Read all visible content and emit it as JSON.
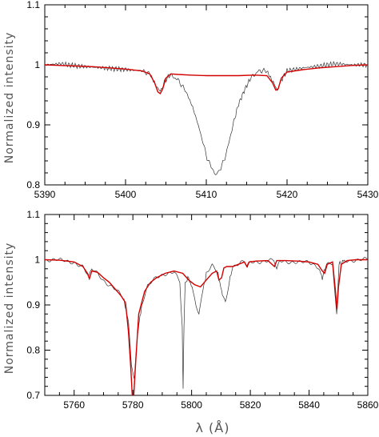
{
  "chart_data": [
    {
      "type": "line",
      "ylabel": "Normalized intensity",
      "xlabel": "",
      "xlim": [
        5390,
        5430
      ],
      "ylim": [
        0.8,
        1.1
      ],
      "x_ticks": [
        5390,
        5400,
        5410,
        5420,
        5430
      ],
      "y_ticks": [
        0.8,
        0.9,
        1,
        1.1
      ],
      "y_tick_labels": [
        "0.8",
        "0.9",
        "1",
        "1.1"
      ],
      "series": [
        {
          "role": "observed",
          "color": "#333333",
          "x": [
            5390,
            5392,
            5394,
            5396,
            5398,
            5400,
            5402,
            5403,
            5403.8,
            5404.3,
            5404.8,
            5405.5,
            5406.5,
            5407.5,
            5408.3,
            5409.0,
            5409.6,
            5410.1,
            5410.6,
            5411.0,
            5411.4,
            5411.8,
            5412.3,
            5412.8,
            5413.3,
            5414.0,
            5414.8,
            5415.5,
            5416.5,
            5417.5,
            5418.3,
            5418.8,
            5419.3,
            5420,
            5422,
            5424,
            5426,
            5428,
            5430
          ],
          "y": [
            1.0,
            1.002,
            0.998,
            0.996,
            0.994,
            0.992,
            0.99,
            0.985,
            0.965,
            0.955,
            0.972,
            0.983,
            0.975,
            0.955,
            0.93,
            0.9,
            0.87,
            0.845,
            0.83,
            0.82,
            0.822,
            0.828,
            0.845,
            0.87,
            0.9,
            0.935,
            0.96,
            0.978,
            0.99,
            0.99,
            0.97,
            0.958,
            0.975,
            0.99,
            0.995,
            0.998,
            1.002,
            1.0,
            1.0
          ]
        },
        {
          "role": "model",
          "color": "#d40000",
          "x": [
            5390,
            5392,
            5394,
            5396,
            5398,
            5400,
            5402,
            5403,
            5403.6,
            5404.0,
            5404.3,
            5404.6,
            5405.0,
            5405.6,
            5406.5,
            5408,
            5410,
            5412,
            5414,
            5416,
            5417.5,
            5418.2,
            5418.6,
            5418.9,
            5419.3,
            5420,
            5422,
            5424,
            5426,
            5428,
            5430
          ],
          "y": [
            1.0,
            0.999,
            0.998,
            0.997,
            0.995,
            0.993,
            0.99,
            0.985,
            0.97,
            0.955,
            0.952,
            0.96,
            0.978,
            0.985,
            0.984,
            0.983,
            0.982,
            0.982,
            0.982,
            0.983,
            0.982,
            0.97,
            0.958,
            0.96,
            0.978,
            0.988,
            0.992,
            0.995,
            0.997,
            0.999,
            1.0
          ]
        }
      ]
    },
    {
      "type": "line",
      "ylabel": "Normalized intensity",
      "xlabel": "λ (Å)",
      "xlim": [
        5750,
        5860
      ],
      "ylim": [
        0.7,
        1.1
      ],
      "x_ticks": [
        5760,
        5780,
        5800,
        5820,
        5840,
        5860
      ],
      "y_ticks": [
        0.7,
        0.8,
        0.9,
        1,
        1.1
      ],
      "y_tick_labels": [
        "0.7",
        "0.8",
        "0.9",
        "1",
        "1.1"
      ],
      "series": [
        {
          "role": "observed",
          "color": "#333333",
          "x": [
            5750,
            5755,
            5760,
            5763,
            5765,
            5766,
            5768,
            5770,
            5772,
            5774,
            5776,
            5777,
            5778.5,
            5779.5,
            5780.5,
            5781.5,
            5783,
            5785,
            5788,
            5791,
            5794,
            5796,
            5796.8,
            5797.1,
            5797.4,
            5797.8,
            5799,
            5800.5,
            5801.5,
            5802.5,
            5803.5,
            5805,
            5807,
            5809,
            5810.5,
            5811.5,
            5812.5,
            5814,
            5818,
            5819,
            5820,
            5825,
            5828,
            5829,
            5830,
            5835,
            5840,
            5843,
            5844.5,
            5846,
            5848,
            5849.4,
            5850.2,
            5852,
            5855,
            5860
          ],
          "y": [
            1.0,
            0.998,
            0.995,
            0.985,
            0.96,
            0.978,
            0.97,
            0.955,
            0.945,
            0.935,
            0.92,
            0.91,
            0.86,
            0.77,
            0.74,
            0.83,
            0.9,
            0.94,
            0.96,
            0.97,
            0.975,
            0.95,
            0.85,
            0.72,
            0.85,
            0.95,
            0.96,
            0.93,
            0.9,
            0.885,
            0.92,
            0.97,
            0.985,
            0.97,
            0.92,
            0.91,
            0.94,
            0.985,
            0.995,
            0.98,
            0.995,
            0.998,
            0.998,
            0.975,
            0.997,
            0.996,
            0.992,
            0.985,
            0.96,
            0.992,
            0.99,
            0.88,
            0.99,
            0.998,
            1.0,
            1.0
          ]
        },
        {
          "role": "model",
          "color": "#d40000",
          "x": [
            5750,
            5755,
            5760,
            5763,
            5764.5,
            5765.2,
            5766,
            5768,
            5770,
            5772,
            5774,
            5776,
            5777.5,
            5778.5,
            5779.3,
            5779.8,
            5780.3,
            5781,
            5782,
            5784,
            5786,
            5788,
            5791,
            5794,
            5797,
            5799,
            5801,
            5803,
            5805,
            5807,
            5808.5,
            5809.3,
            5810.2,
            5811,
            5812,
            5814,
            5816,
            5818,
            5818.8,
            5819.6,
            5822,
            5826,
            5828.2,
            5829,
            5832,
            5836,
            5840,
            5843,
            5844.5,
            5845.3,
            5846.2,
            5848,
            5849.0,
            5849.5,
            5850.0,
            5851,
            5853,
            5856,
            5860
          ],
          "y": [
            1.0,
            0.999,
            0.995,
            0.985,
            0.97,
            0.958,
            0.975,
            0.972,
            0.96,
            0.95,
            0.935,
            0.92,
            0.905,
            0.84,
            0.76,
            0.7,
            0.7,
            0.78,
            0.88,
            0.93,
            0.95,
            0.96,
            0.97,
            0.975,
            0.97,
            0.955,
            0.945,
            0.94,
            0.955,
            0.97,
            0.975,
            0.955,
            0.96,
            0.982,
            0.985,
            0.985,
            0.99,
            0.995,
            0.985,
            0.995,
            0.997,
            0.998,
            0.985,
            0.998,
            0.998,
            0.997,
            0.995,
            0.99,
            0.975,
            0.97,
            0.99,
            0.995,
            0.93,
            0.89,
            0.94,
            0.99,
            0.998,
            1.0,
            1.0
          ]
        }
      ]
    }
  ]
}
